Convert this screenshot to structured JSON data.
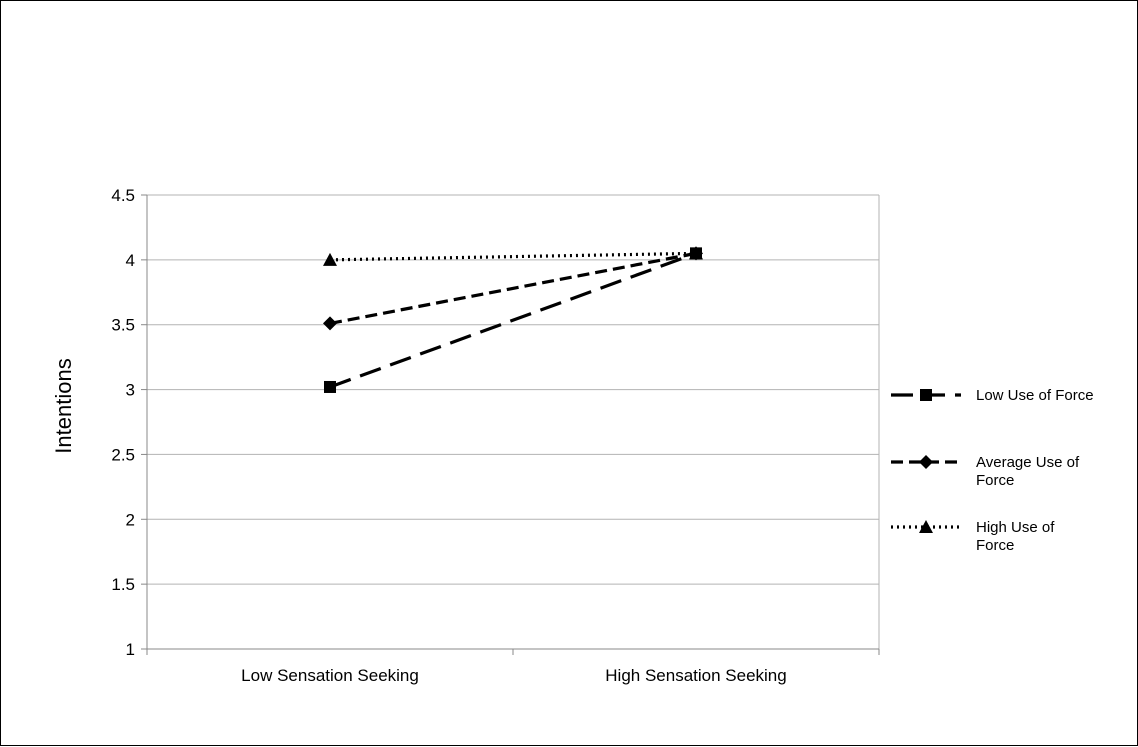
{
  "chart_data": {
    "type": "line",
    "title": "",
    "xlabel": "",
    "ylabel": "Intentions",
    "categories": [
      "Low Sensation Seeking",
      "High Sensation Seeking"
    ],
    "ylim": [
      1,
      4.5
    ],
    "yticks": [
      "1",
      "1.5",
      "2",
      "2.5",
      "3",
      "3.5",
      "4",
      "4.5"
    ],
    "grid": true,
    "legend_position": "right",
    "series": [
      {
        "name": "Low Use of Force",
        "legend_lines": [
          "Low Use of Force"
        ],
        "values": [
          3.02,
          4.05
        ],
        "line_style": "long-dash",
        "marker": "square",
        "color": "#000000"
      },
      {
        "name": "Average Use of Force",
        "legend_lines": [
          "Average Use of",
          "Force"
        ],
        "values": [
          3.51,
          4.05
        ],
        "line_style": "dash",
        "marker": "diamond",
        "color": "#000000"
      },
      {
        "name": "High Use of Force",
        "legend_lines": [
          "High Use of",
          "Force"
        ],
        "values": [
          4.0,
          4.05
        ],
        "line_style": "dotted",
        "marker": "triangle",
        "color": "#000000"
      }
    ]
  }
}
